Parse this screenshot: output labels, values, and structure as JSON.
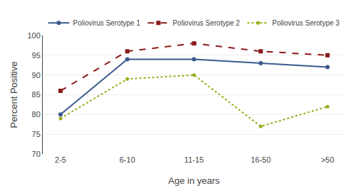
{
  "chart_data": {
    "type": "line",
    "xlabel": "Age in years",
    "ylabel": "Percent Positive",
    "categories": [
      "2-5",
      "6-10",
      "11-15",
      "16-50",
      ">50"
    ],
    "series": [
      {
        "name": "Poliovirus Serotype 1",
        "color": "#3a5a8c",
        "marker": "circle",
        "line_style": "solid",
        "values": [
          80,
          94,
          94,
          93,
          92
        ]
      },
      {
        "name": "Poliovirus Serotype 2",
        "color": "#8b1a1a",
        "marker": "square",
        "line_style": "dashed",
        "values": [
          86,
          96,
          98,
          96,
          95
        ]
      },
      {
        "name": "Poliovirus Serotype 3",
        "color": "#9aac1a",
        "marker": "dot",
        "line_style": "dotted",
        "values": [
          79,
          89,
          90,
          77,
          82
        ]
      }
    ],
    "ylim": [
      70,
      100
    ],
    "yticks": [
      70,
      75,
      80,
      85,
      90,
      95,
      100
    ],
    "grid": "y",
    "legend": "top"
  }
}
